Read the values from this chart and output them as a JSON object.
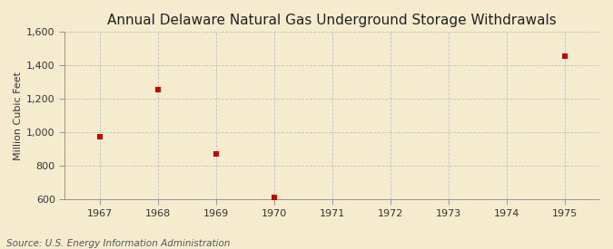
{
  "title": "Annual Delaware Natural Gas Underground Storage Withdrawals",
  "ylabel": "Million Cubic Feet",
  "source": "Source: U.S. Energy Information Administration",
  "background_color": "#f5ecd0",
  "years": [
    1967,
    1968,
    1969,
    1970,
    1975
  ],
  "values": [
    975,
    1255,
    870,
    615,
    1455
  ],
  "all_years": [
    1967,
    1968,
    1969,
    1970,
    1971,
    1972,
    1973,
    1974,
    1975
  ],
  "ylim": [
    600,
    1600
  ],
  "yticks": [
    600,
    800,
    1000,
    1200,
    1400,
    1600
  ],
  "ytick_labels": [
    "600",
    "800",
    "1,000",
    "1,200",
    "1,400",
    "1,600"
  ],
  "marker_color": "#cc0000",
  "marker": "s",
  "marker_size": 4,
  "grid_color": "#bbbbbb",
  "title_fontsize": 11,
  "label_fontsize": 8,
  "tick_fontsize": 8,
  "source_fontsize": 7.5,
  "xlim_left": 1966.4,
  "xlim_right": 1975.6
}
